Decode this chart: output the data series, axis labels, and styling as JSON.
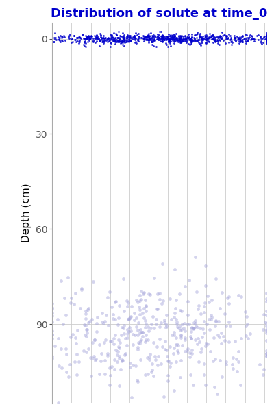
{
  "title": "Distribution of solute at time_0",
  "title_color": "#0000CC",
  "title_fontsize": 13,
  "ylabel": "Depth (cm)",
  "ylabel_fontsize": 11,
  "ylabel_color": "#000000",
  "background_color": "#ffffff",
  "panel_background": "#ffffff",
  "grid_color": "#cccccc",
  "yticks": [
    0,
    30,
    60,
    90
  ],
  "ylim_top": -5,
  "ylim_bottom": 115,
  "xlim": [
    0,
    500
  ],
  "cluster1": {
    "n": 800,
    "x_mean": 250,
    "x_std": 145,
    "y_mean": 0,
    "y_std": 0.8,
    "color": "#0000CC",
    "alpha": 0.85,
    "size": 4
  },
  "cluster2": {
    "n": 450,
    "x_mean": 250,
    "x_std": 140,
    "y_mean": 93,
    "y_std": 8,
    "color": "#aaaadd",
    "alpha": 0.5,
    "size": 12
  }
}
